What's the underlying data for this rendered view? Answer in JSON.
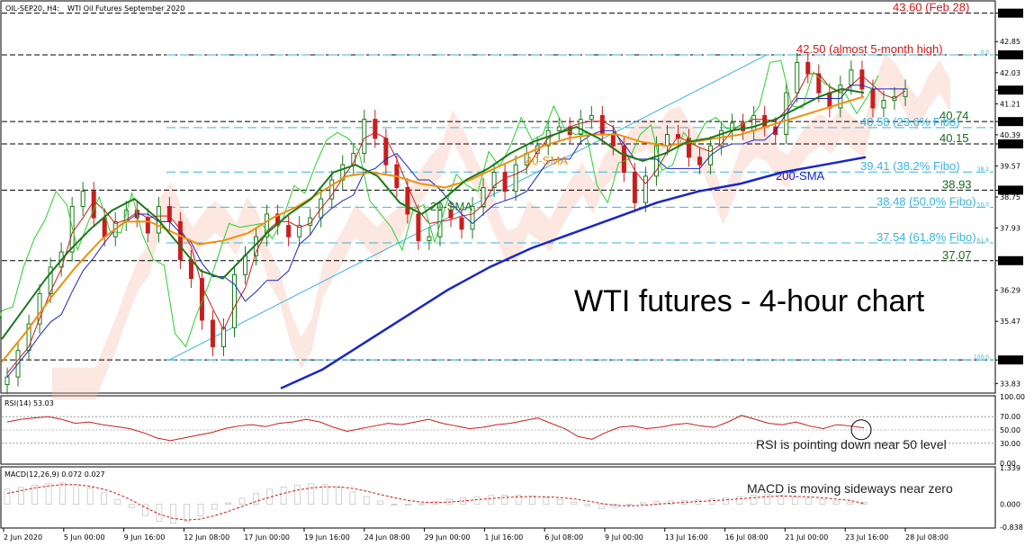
{
  "header": {
    "symbol": "OIL-SEP20, H4:",
    "description": "WTI Oil Futures September 2020"
  },
  "main_title": "WTI futures - 4-hour chart",
  "colors": {
    "price_up": "#1a7a1a",
    "price_down": "#c81e1e",
    "sma20": "#1a7a1a",
    "sma50": "#f0900a",
    "sma200": "#1a26c8",
    "fibo": "#3ab4dc",
    "resistance": "#d01818",
    "support": "#1a6a1a",
    "rsi": "#c81e1e",
    "macd_signal": "#d01818",
    "macd_hist": "#b4b4b4",
    "tenkan": "#c81e1e",
    "kijun": "#1a26c8",
    "chikou": "#2ad02a",
    "cloud": "#f5b9a8"
  },
  "chart_data": [
    {
      "type": "line",
      "name": "price",
      "yaxis_ticks": [
        "43.60",
        "42.85",
        "42.50",
        "42.03",
        "41.57",
        "41.21",
        "40.74",
        "40.39",
        "40.15",
        "39.57",
        "38.93",
        "38.75",
        "37.93",
        "37.07",
        "36.29",
        "35.47",
        "34.45",
        "33.83"
      ],
      "yaxis_highlight": [
        "43.60",
        "42.50",
        "41.57",
        "40.74",
        "40.15",
        "38.93",
        "37.07",
        "34.45"
      ],
      "ylim": [
        33.6,
        43.9
      ],
      "xaxis_ticks": [
        "2 Jun 2020",
        "5 Jun 00:00",
        "9 Jun 16:00",
        "12 Jun 08:00",
        "17 Jun 00:00",
        "19 Jun 16:00",
        "24 Jun 08:00",
        "29 Jun 00:00",
        "1 Jul 16:00",
        "6 Jul 08:00",
        "9 Jul 00:00",
        "13 Jul 16:00",
        "16 Jul 08:00",
        "21 Jul 00:00",
        "23 Jul 16:00",
        "28 Jul 08:00"
      ],
      "price_close_path": [
        34.0,
        34.7,
        35.4,
        36.2,
        36.9,
        37.3,
        38.5,
        38.9,
        38.2,
        37.7,
        38.1,
        38.4,
        38.2,
        37.8,
        38.5,
        38.1,
        37.1,
        36.6,
        35.5,
        34.8,
        35.3,
        36.7,
        37.2,
        37.7,
        38.3,
        38.0,
        37.7,
        38.0,
        38.2,
        38.7,
        39.2,
        39.6,
        39.9,
        40.8,
        40.3,
        39.6,
        39.0,
        38.3,
        37.6,
        37.7,
        38.4,
        38.2,
        37.9,
        38.5,
        39.0,
        39.4,
        38.9,
        39.6,
        39.9,
        40.1,
        40.5,
        40.6,
        40.4,
        40.8,
        40.9,
        40.4,
        40.1,
        39.4,
        38.6,
        39.3,
        40.1,
        40.4,
        40.3,
        39.8,
        39.6,
        40.1,
        40.5,
        40.7,
        40.5,
        40.9,
        40.6,
        40.4,
        41.5,
        42.3,
        42.0,
        41.5,
        41.1,
        41.7,
        42.1,
        41.6,
        41.1,
        41.3,
        41.4,
        41.6
      ],
      "sma20_path": [
        35.0,
        35.8,
        36.6,
        37.3,
        37.9,
        38.4,
        38.7,
        38.2,
        37.5,
        36.8,
        36.6,
        37.2,
        37.8,
        38.3,
        38.7,
        39.4,
        39.6,
        39.3,
        38.6,
        38.3,
        38.7,
        39.2,
        39.5,
        39.9,
        40.2,
        40.4,
        40.6,
        40.3,
        39.9,
        39.7,
        39.9,
        40.2,
        40.3,
        40.5,
        40.6,
        40.8,
        41.1,
        41.4,
        41.6,
        41.5
      ],
      "sma50_path": [
        34.4,
        35.2,
        36.1,
        36.9,
        37.6,
        38.1,
        38.1,
        37.8,
        37.5,
        37.6,
        37.8,
        38.2,
        38.5,
        38.9,
        39.3,
        39.4,
        39.3,
        39.1,
        39.0,
        39.2,
        39.5,
        39.8,
        40.1,
        40.3,
        40.4,
        40.4,
        40.2,
        40.1,
        40.2,
        40.3,
        40.4,
        40.6,
        40.8,
        41.0,
        41.2,
        41.4
      ],
      "sma200_path": [
        33.7,
        34.2,
        34.9,
        35.6,
        36.3,
        36.9,
        37.4,
        37.8,
        38.2,
        38.6,
        38.9,
        39.1,
        39.4,
        39.6,
        39.8
      ],
      "annotations": [
        {
          "text": "43.60 (Feb 28)",
          "level": 43.6,
          "color": "resistance"
        },
        {
          "text": "42.50 (almost 5-month high)",
          "level": 42.5,
          "color": "resistance"
        },
        {
          "text": "40.74",
          "level": 40.74,
          "color": "support"
        },
        {
          "text": "40.58 (23.6% Fibo)",
          "level": 40.58,
          "color": "fibo"
        },
        {
          "text": "40.15",
          "level": 40.15,
          "color": "support"
        },
        {
          "text": "39.41 (38.2% Fibo)",
          "level": 39.41,
          "color": "fibo"
        },
        {
          "text": "38.93",
          "level": 38.93,
          "color": "support"
        },
        {
          "text": "38.48 (50.0% Fibo)",
          "level": 38.48,
          "color": "fibo"
        },
        {
          "text": "37.54 (61.8% Fibo)",
          "level": 37.54,
          "color": "fibo"
        },
        {
          "text": "37.07",
          "level": 37.07,
          "color": "support"
        }
      ],
      "fibo_edge_labels": [
        "0.0",
        "38.2",
        "50.0",
        "61.8",
        "100.0"
      ],
      "ma_labels": [
        "20-SMA",
        "40-SMA",
        "200-SMA"
      ]
    },
    {
      "type": "line",
      "name": "RSI(14) 53.03",
      "label": "RSI(14) 53.03",
      "ylim": [
        0,
        100
      ],
      "yaxis_ticks": [
        "100.00",
        "70.00",
        "50.00",
        "30.00",
        "0.00"
      ],
      "values": [
        62,
        66,
        68,
        70,
        66,
        60,
        62,
        58,
        55,
        52,
        46,
        38,
        34,
        38,
        42,
        46,
        52,
        56,
        58,
        55,
        60,
        62,
        66,
        62,
        54,
        48,
        52,
        56,
        60,
        58,
        62,
        66,
        60,
        56,
        52,
        54,
        58,
        60,
        64,
        68,
        60,
        52,
        40,
        36,
        46,
        54,
        56,
        52,
        54,
        58,
        60,
        56,
        54,
        62,
        72,
        66,
        60,
        58,
        62,
        56,
        52,
        58,
        56,
        53
      ],
      "note": "RSI is pointing down near 50 level"
    },
    {
      "type": "bar",
      "name": "MACD(12,26,9) 0.072 0.027",
      "label": "MACD(12,26,9) 0.072 0.027",
      "ylim": [
        -0.838,
        1.339
      ],
      "yaxis_ticks": [
        "1.339",
        "0.000",
        "-0.838"
      ],
      "histogram": [
        0.55,
        0.62,
        0.7,
        0.75,
        0.78,
        0.72,
        0.6,
        0.42,
        0.18,
        -0.12,
        -0.42,
        -0.62,
        -0.7,
        -0.62,
        -0.42,
        -0.18,
        0.05,
        0.22,
        0.4,
        0.55,
        0.64,
        0.7,
        0.75,
        0.72,
        0.62,
        0.45,
        0.28,
        0.12,
        0.0,
        -0.04,
        0.02,
        0.1,
        0.18,
        0.24,
        0.28,
        0.32,
        0.34,
        0.33,
        0.3,
        0.25,
        0.18,
        0.08,
        -0.06,
        -0.16,
        -0.12,
        -0.02,
        0.06,
        0.1,
        0.12,
        0.14,
        0.16,
        0.2,
        0.24,
        0.28,
        0.34,
        0.36,
        0.32,
        0.26,
        0.22,
        0.18,
        0.12,
        0.08,
        0.072
      ],
      "signal": [
        0.4,
        0.5,
        0.6,
        0.67,
        0.72,
        0.72,
        0.66,
        0.55,
        0.38,
        0.15,
        -0.12,
        -0.36,
        -0.52,
        -0.58,
        -0.54,
        -0.42,
        -0.26,
        -0.08,
        0.1,
        0.26,
        0.4,
        0.52,
        0.6,
        0.64,
        0.64,
        0.58,
        0.48,
        0.36,
        0.24,
        0.14,
        0.08,
        0.06,
        0.08,
        0.12,
        0.17,
        0.21,
        0.25,
        0.27,
        0.28,
        0.27,
        0.25,
        0.2,
        0.12,
        0.03,
        -0.04,
        -0.06,
        -0.04,
        0.0,
        0.04,
        0.07,
        0.1,
        0.13,
        0.16,
        0.2,
        0.24,
        0.28,
        0.3,
        0.29,
        0.27,
        0.24,
        0.19,
        0.14,
        0.027
      ],
      "note": "MACD is moving sideways near zero"
    }
  ]
}
